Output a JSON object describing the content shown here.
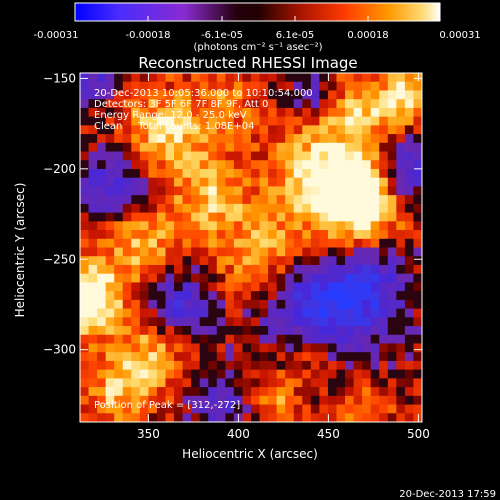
{
  "colorbar": {
    "tick_labels": [
      "-0.00031",
      "-0.00018",
      "-6.1e-05",
      "6.1e-05",
      "0.00018",
      "0.00031"
    ],
    "unit_label": "(photons cm⁻² s⁻¹ asec⁻²)",
    "colors": [
      "#0000ff",
      "#5a2cff",
      "#8a2bd0",
      "#200000",
      "#aa1500",
      "#ff3c00",
      "#ff9000",
      "#ffd060",
      "#ffffff"
    ]
  },
  "chart_data": {
    "type": "heatmap",
    "title": "Reconstructed RHESSI Image",
    "xlabel": "Heliocentric X (arcsec)",
    "ylabel": "Heliocentric Y (arcsec)",
    "xlim": [
      312,
      502
    ],
    "ylim": [
      -340,
      -147
    ],
    "xticks": [
      350,
      400,
      450,
      500
    ],
    "yticks": [
      -150,
      -200,
      -250,
      -300
    ],
    "colorbar_range": [
      -0.00031,
      0.00031
    ],
    "grid": false,
    "peak": [
      312,
      -272
    ],
    "annotations": [
      "20-Dec-2013 10:05:36.000 to 10:10:54.000",
      "Detectors: 3F 5F 6F 7F 8F 9F, Att 0",
      "Energy Range: 12.0 - 25.0 keV",
      "Clean     Total counts: 1.08E+04"
    ],
    "peak_label": "Position of Peak = [312,-272]"
  },
  "footer": {
    "timestamp": "20-Dec-2013 17:59"
  }
}
